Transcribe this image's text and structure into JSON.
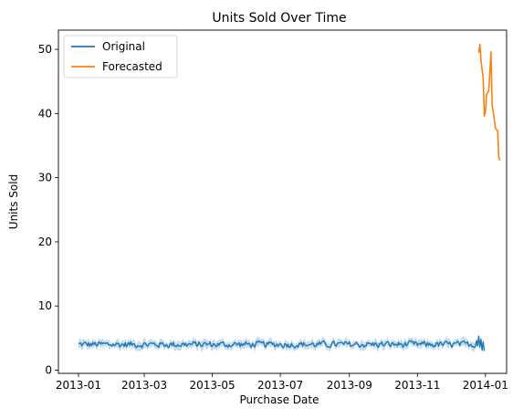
{
  "chart_data": {
    "type": "line",
    "title": "Units Sold Over Time",
    "xlabel": "Purchase Date",
    "ylabel": "Units Sold",
    "xlim": [
      "2012-12-14",
      "2014-01-20"
    ],
    "ylim": [
      -0.5,
      53
    ],
    "x_ticks": [
      "2013-01",
      "2013-03",
      "2013-05",
      "2013-07",
      "2013-09",
      "2013-11",
      "2014-01"
    ],
    "y_ticks": [
      0,
      10,
      20,
      30,
      40,
      50
    ],
    "grid": false,
    "legend_position": "top-left",
    "series": [
      {
        "name": "Original",
        "color": "#1f77b4",
        "band_color": "#1f77b4",
        "x_start": "2013-01-01",
        "x_end": "2013-12-31",
        "mean_level": 4.0,
        "band_low": 3.4,
        "band_high": 4.6,
        "end_points": [
          {
            "date": "2013-12-24",
            "value": 4.6
          },
          {
            "date": "2013-12-26",
            "value": 5.3
          },
          {
            "date": "2013-12-27",
            "value": 3.6
          },
          {
            "date": "2013-12-28",
            "value": 4.8
          },
          {
            "date": "2013-12-29",
            "value": 3.1
          },
          {
            "date": "2013-12-30",
            "value": 4.4
          },
          {
            "date": "2013-12-31",
            "value": 3.0
          }
        ]
      },
      {
        "name": "Forecasted",
        "color": "#ff7f0e",
        "x": [
          "2013-12-26",
          "2013-12-27",
          "2013-12-28",
          "2013-12-30",
          "2013-12-31",
          "2014-01-01",
          "2014-01-02",
          "2014-01-04",
          "2014-01-06",
          "2014-01-07",
          "2014-01-08",
          "2014-01-10",
          "2014-01-12",
          "2014-01-13",
          "2014-01-14"
        ],
        "values": [
          49.5,
          50.8,
          48.3,
          45.5,
          39.6,
          40.3,
          43.0,
          43.5,
          49.6,
          41.2,
          40.3,
          37.7,
          37.3,
          33.1,
          32.7
        ]
      }
    ]
  }
}
